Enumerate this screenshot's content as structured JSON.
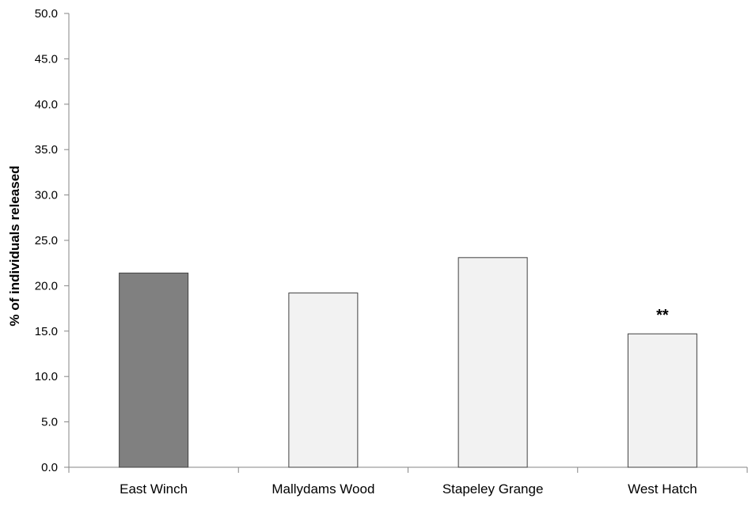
{
  "chart_data": {
    "type": "bar",
    "title": "",
    "xlabel": "",
    "ylabel": "% of individuals released",
    "categories": [
      "East Winch",
      "Mallydams Wood",
      "Stapeley Grange",
      "West Hatch"
    ],
    "values": [
      21.4,
      19.2,
      23.1,
      14.7
    ],
    "bar_colors": [
      "#808080",
      "#f2f2f2",
      "#f2f2f2",
      "#f2f2f2"
    ],
    "bar_edge_color": "#404040",
    "annotations": [
      "",
      "",
      "",
      "**"
    ],
    "ylim": [
      0,
      50
    ],
    "yticks": [
      "0.0",
      "5.0",
      "10.0",
      "15.0",
      "20.0",
      "25.0",
      "30.0",
      "35.0",
      "40.0",
      "45.0",
      "50.0"
    ],
    "grid": false,
    "legend": "none"
  }
}
